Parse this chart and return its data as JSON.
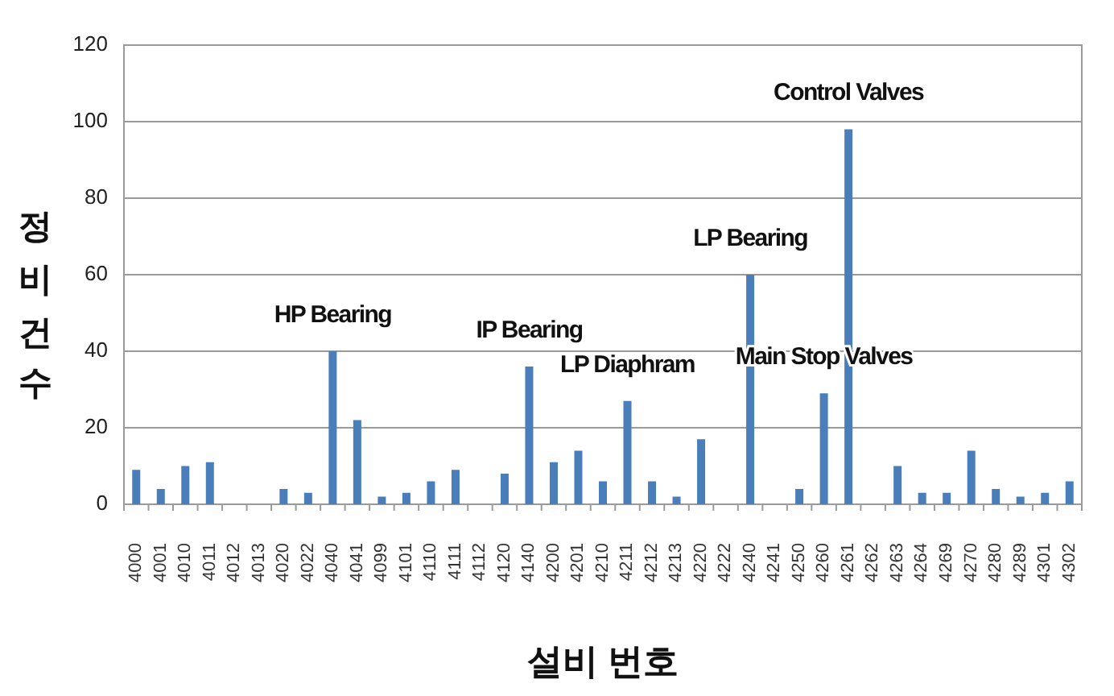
{
  "chart_data": {
    "type": "bar",
    "ylabel": "정비건수",
    "xlabel": "설비 번호",
    "categories": [
      "4000",
      "4001",
      "4010",
      "4011",
      "4012",
      "4013",
      "4020",
      "4022",
      "4040",
      "4041",
      "4099",
      "4101",
      "4110",
      "4111",
      "4112",
      "4120",
      "4140",
      "4200",
      "4201",
      "4210",
      "4211",
      "4212",
      "4213",
      "4220",
      "4222",
      "4240",
      "4241",
      "4250",
      "4260",
      "4261",
      "4262",
      "4263",
      "4264",
      "4269",
      "4270",
      "4280",
      "4289",
      "4301",
      "4302"
    ],
    "values": [
      9,
      4,
      10,
      11,
      0,
      0,
      4,
      3,
      40,
      22,
      2,
      3,
      6,
      9,
      0,
      8,
      36,
      11,
      14,
      6,
      27,
      6,
      2,
      17,
      0,
      60,
      0,
      4,
      29,
      98,
      0,
      10,
      3,
      3,
      14,
      4,
      2,
      3,
      6
    ],
    "color": "#4a7ebb",
    "ylim": [
      0,
      120
    ],
    "yticks": [
      0,
      20,
      40,
      60,
      80,
      100,
      120
    ],
    "grid": "y",
    "annotations": [
      {
        "text": "HP Bearing",
        "x": "4040",
        "y": 40
      },
      {
        "text": "IP Bearing",
        "x": "4140",
        "y": 36
      },
      {
        "text": "LP Diaphram",
        "x": "4211",
        "y": 27
      },
      {
        "text": "LP Bearing",
        "x": "4240",
        "y": 60
      },
      {
        "text": "Main Stop Valves",
        "x": "4260",
        "y": 29
      },
      {
        "text": "Control Valves",
        "x": "4261",
        "y": 98
      }
    ]
  }
}
